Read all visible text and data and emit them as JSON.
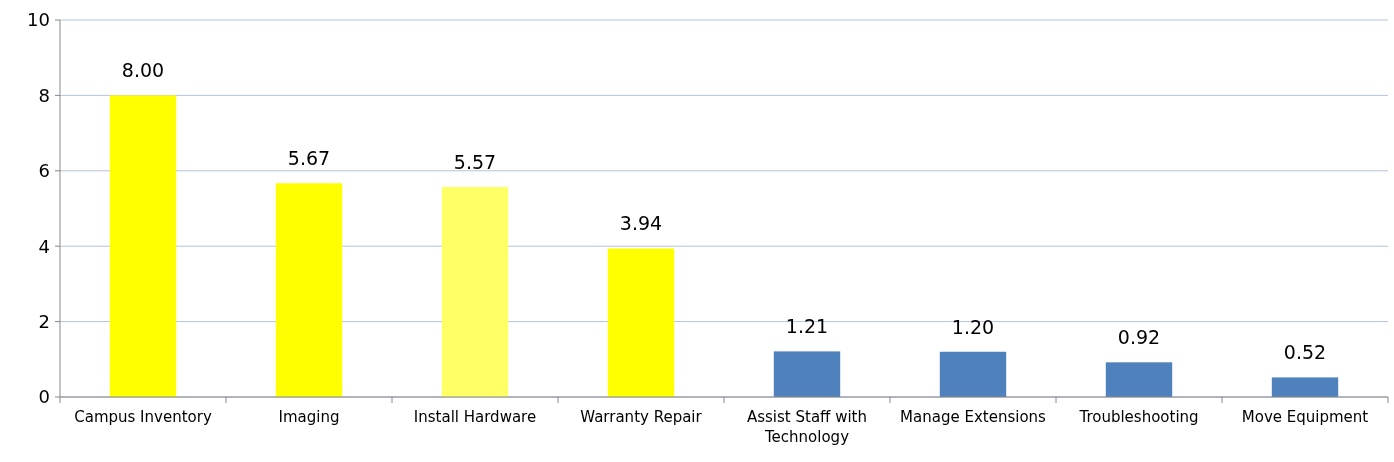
{
  "chart_data": {
    "type": "bar",
    "categories": [
      "Campus Inventory",
      "Imaging",
      "Install Hardware",
      "Warranty Repair",
      "Assist Staff with Technology",
      "Manage Extensions",
      "Troubleshooting",
      "Move Equipment"
    ],
    "values": [
      8.0,
      5.67,
      5.57,
      3.94,
      1.21,
      1.2,
      0.92,
      0.52
    ],
    "colors": [
      "#ffff00",
      "#ffff00",
      "#ffff66",
      "#ffff00",
      "#4f81bd",
      "#4f81bd",
      "#4f81bd",
      "#4f81bd"
    ],
    "value_labels": [
      "8.00",
      "5.67",
      "5.57",
      "3.94",
      "1.21",
      "1.20",
      "0.92",
      "0.52"
    ],
    "ylim": [
      0,
      10
    ],
    "yticks": [
      0,
      2,
      4,
      6,
      8,
      10
    ],
    "grid": "y"
  }
}
